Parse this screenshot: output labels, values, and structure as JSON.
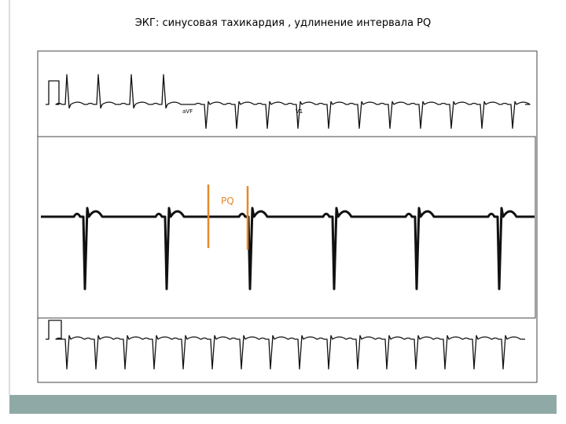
{
  "slide": {
    "title": "ЭКГ: синусовая тахикардия , удлинение интервала PQ",
    "interval_label": "PQ",
    "lead_labels": [
      "aVF",
      "V1"
    ]
  }
}
